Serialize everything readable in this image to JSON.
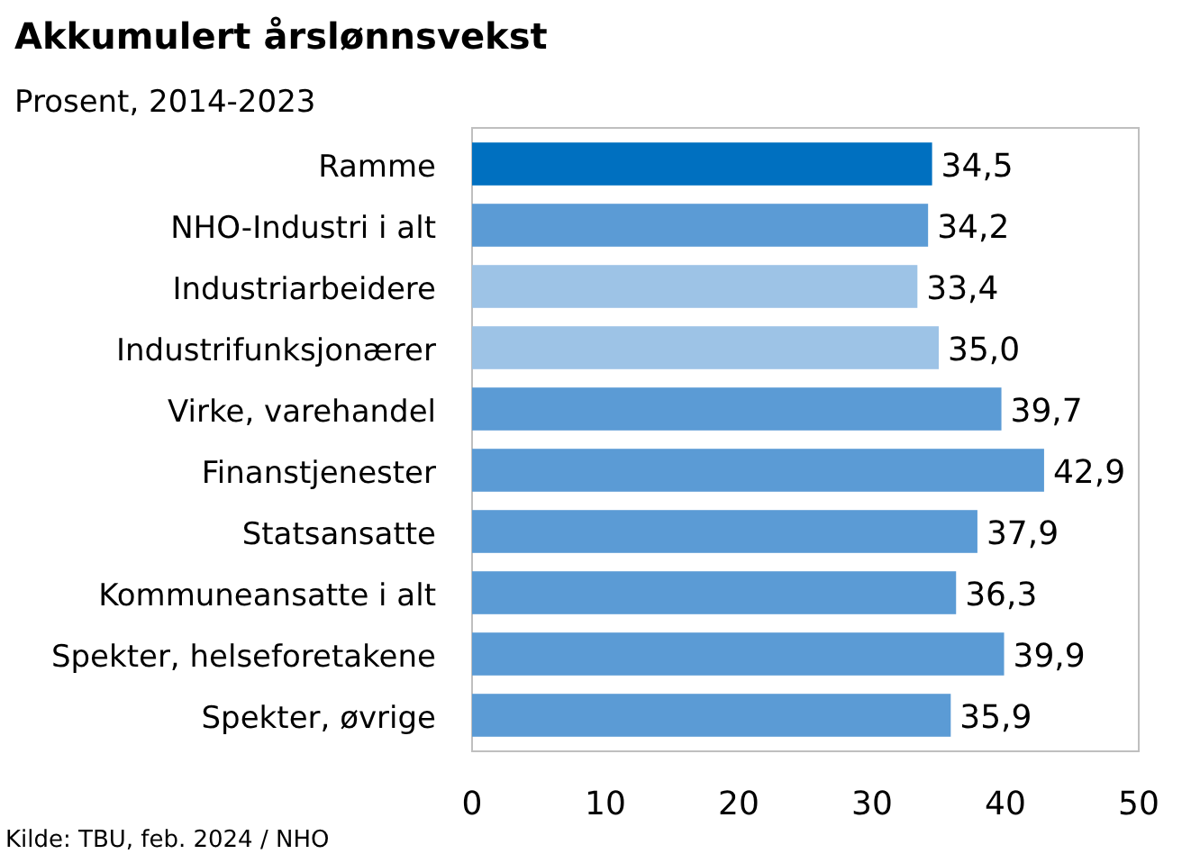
{
  "chart_data": {
    "type": "bar",
    "orientation": "horizontal",
    "title": "Akkumulert årslønnsvekst",
    "subtitle": "Prosent, 2014-2023",
    "categories": [
      "Ramme",
      "NHO-Industri i alt",
      "Industriarbeidere",
      "Industrifunksjonærer",
      "Virke, varehandel",
      "Finanstjenester",
      "Statsansatte",
      "Kommuneansatte i alt",
      "Spekter, helseforetakene",
      "Spekter, øvrige"
    ],
    "values": [
      34.5,
      34.2,
      33.4,
      35.0,
      39.7,
      42.9,
      37.9,
      36.3,
      39.9,
      35.9
    ],
    "colors": [
      "#0070c0",
      "#5b9bd5",
      "#9dc3e6",
      "#9dc3e6",
      "#5b9bd5",
      "#5b9bd5",
      "#5b9bd5",
      "#5b9bd5",
      "#5b9bd5",
      "#5b9bd5"
    ],
    "value_labels": [
      "34,5",
      "34,2",
      "33,4",
      "35,0",
      "39,7",
      "42,9",
      "37,9",
      "36,3",
      "39,9",
      "35,9"
    ],
    "xlim": [
      0,
      50
    ],
    "xticks": [
      0,
      10,
      20,
      30,
      40,
      50
    ],
    "annotations": [
      "Kilde: TBU, feb. 2024 / NHO"
    ]
  }
}
